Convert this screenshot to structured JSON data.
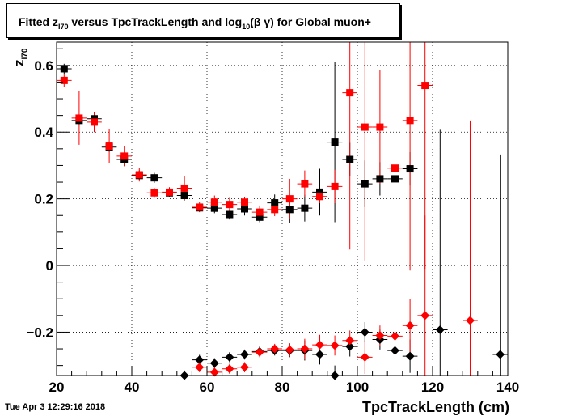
{
  "header": {
    "title_pre": "Fitted  z",
    "title_sub1": "I70",
    "title_mid": "  versus TpcTrackLength and log",
    "title_sub2": "10",
    "title_post": "(β γ) for Global muon+"
  },
  "axes": {
    "ylabel_main": "z",
    "ylabel_sub": "I70",
    "xlabel": "TpcTrackLength (cm)"
  },
  "footer": {
    "timestamp": "Tue Apr  3 12:29:16 2018"
  },
  "colors": {
    "series_black": "#000000",
    "series_red": "#ff0000",
    "grid": "#000000"
  },
  "chart_data": {
    "type": "scatter",
    "xlim": [
      20,
      140
    ],
    "ylim": [
      -0.33,
      0.67
    ],
    "x_ticks": [
      20,
      40,
      60,
      80,
      100,
      120,
      140
    ],
    "y_ticks": [
      -0.2,
      0,
      0.2,
      0.4,
      0.6
    ],
    "y_tick_labels": [
      "−0.2",
      "0",
      "0.2",
      "0.4",
      "0.6"
    ],
    "grid": true,
    "xerr": 2,
    "series": [
      {
        "marker": "square",
        "color": "black",
        "points": [
          {
            "x": 22,
            "y": 0.59,
            "yerr": 0.015
          },
          {
            "x": 26,
            "y": 0.435,
            "yerr": 0.015
          },
          {
            "x": 30,
            "y": 0.44,
            "yerr": 0.02
          },
          {
            "x": 34,
            "y": 0.355,
            "yerr": 0.015
          },
          {
            "x": 38,
            "y": 0.318,
            "yerr": 0.02
          },
          {
            "x": 42,
            "y": 0.27,
            "yerr": 0.015
          },
          {
            "x": 46,
            "y": 0.263,
            "yerr": 0.015
          },
          {
            "x": 50,
            "y": 0.218,
            "yerr": 0.01
          },
          {
            "x": 54,
            "y": 0.21,
            "yerr": 0.015
          },
          {
            "x": 58,
            "y": 0.173,
            "yerr": 0.01
          },
          {
            "x": 62,
            "y": 0.172,
            "yerr": 0.015
          },
          {
            "x": 66,
            "y": 0.153,
            "yerr": 0.015
          },
          {
            "x": 70,
            "y": 0.17,
            "yerr": 0.02
          },
          {
            "x": 74,
            "y": 0.145,
            "yerr": 0.015
          },
          {
            "x": 78,
            "y": 0.188,
            "yerr": 0.025
          },
          {
            "x": 82,
            "y": 0.168,
            "yerr": 0.04
          },
          {
            "x": 86,
            "y": 0.172,
            "yerr": 0.04
          },
          {
            "x": 90,
            "y": 0.22,
            "yerr": 0.07
          },
          {
            "x": 94,
            "y": 0.37,
            "yerr": 0.24
          },
          {
            "x": 98,
            "y": 0.318,
            "yerr": 0.05
          },
          {
            "x": 102,
            "y": 0.245,
            "yerr": 0.07
          },
          {
            "x": 106,
            "y": 0.26,
            "yerr": 0.05
          },
          {
            "x": 110,
            "y": 0.26,
            "yerr": 0.16
          },
          {
            "x": 114,
            "y": 0.29,
            "yerr": 0.05
          }
        ]
      },
      {
        "marker": "square",
        "color": "red",
        "points": [
          {
            "x": 22,
            "y": 0.555,
            "yerr": 0.02
          },
          {
            "x": 26,
            "y": 0.442,
            "yerr": 0.08
          },
          {
            "x": 30,
            "y": 0.43,
            "yerr": 0.03
          },
          {
            "x": 34,
            "y": 0.358,
            "yerr": 0.05
          },
          {
            "x": 38,
            "y": 0.328,
            "yerr": 0.03
          },
          {
            "x": 42,
            "y": 0.272,
            "yerr": 0.02
          },
          {
            "x": 46,
            "y": 0.218,
            "yerr": 0.015
          },
          {
            "x": 50,
            "y": 0.22,
            "yerr": 0.015
          },
          {
            "x": 54,
            "y": 0.232,
            "yerr": 0.035
          },
          {
            "x": 58,
            "y": 0.175,
            "yerr": 0.015
          },
          {
            "x": 62,
            "y": 0.19,
            "yerr": 0.02
          },
          {
            "x": 66,
            "y": 0.183,
            "yerr": 0.02
          },
          {
            "x": 70,
            "y": 0.19,
            "yerr": 0.015
          },
          {
            "x": 74,
            "y": 0.16,
            "yerr": 0.02
          },
          {
            "x": 78,
            "y": 0.168,
            "yerr": 0.02
          },
          {
            "x": 82,
            "y": 0.2,
            "yerr": 0.06
          },
          {
            "x": 86,
            "y": 0.245,
            "yerr": 0.04
          },
          {
            "x": 90,
            "y": 0.207,
            "yerr": 0.02
          },
          {
            "x": 94,
            "y": 0.237,
            "yerr": 0.05
          },
          {
            "x": 98,
            "y": 0.518,
            "yerr": 0.47
          },
          {
            "x": 102,
            "y": 0.415,
            "yerr": 0.4
          },
          {
            "x": 106,
            "y": 0.415,
            "yerr": 0.17
          },
          {
            "x": 110,
            "y": 0.292,
            "yerr": 0.06
          },
          {
            "x": 114,
            "y": 0.435,
            "yerr": 0.45
          },
          {
            "x": 118,
            "y": 0.54,
            "yerr": 0.55
          }
        ]
      },
      {
        "marker": "diamond",
        "color": "black",
        "points": [
          {
            "x": 54,
            "y": -0.33,
            "yerr": 0.015
          },
          {
            "x": 58,
            "y": -0.283,
            "yerr": 0.015
          },
          {
            "x": 62,
            "y": -0.293,
            "yerr": 0.015
          },
          {
            "x": 66,
            "y": -0.275,
            "yerr": 0.015
          },
          {
            "x": 70,
            "y": -0.267,
            "yerr": 0.015
          },
          {
            "x": 74,
            "y": -0.258,
            "yerr": 0.015
          },
          {
            "x": 78,
            "y": -0.255,
            "yerr": 0.015
          },
          {
            "x": 82,
            "y": -0.255,
            "yerr": 0.02
          },
          {
            "x": 86,
            "y": -0.255,
            "yerr": 0.03
          },
          {
            "x": 90,
            "y": -0.267,
            "yerr": 0.03
          },
          {
            "x": 94,
            "y": -0.33,
            "yerr": 0.03
          },
          {
            "x": 98,
            "y": -0.243,
            "yerr": 0.03
          },
          {
            "x": 102,
            "y": -0.2,
            "yerr": 0.03
          },
          {
            "x": 106,
            "y": -0.222,
            "yerr": 0.03
          },
          {
            "x": 110,
            "y": -0.255,
            "yerr": 0.05
          },
          {
            "x": 114,
            "y": -0.272,
            "yerr": 0.05
          },
          {
            "x": 122,
            "y": -0.193,
            "yerr": 0.6
          },
          {
            "x": 138,
            "y": -0.267,
            "yerr": 0.6
          }
        ]
      },
      {
        "marker": "diamond",
        "color": "red",
        "points": [
          {
            "x": 58,
            "y": -0.305,
            "yerr": 0.015
          },
          {
            "x": 62,
            "y": -0.32,
            "yerr": 0.015
          },
          {
            "x": 66,
            "y": -0.31,
            "yerr": 0.015
          },
          {
            "x": 70,
            "y": -0.305,
            "yerr": 0.015
          },
          {
            "x": 74,
            "y": -0.26,
            "yerr": 0.015
          },
          {
            "x": 78,
            "y": -0.25,
            "yerr": 0.015
          },
          {
            "x": 82,
            "y": -0.253,
            "yerr": 0.02
          },
          {
            "x": 86,
            "y": -0.25,
            "yerr": 0.03
          },
          {
            "x": 90,
            "y": -0.238,
            "yerr": 0.03
          },
          {
            "x": 94,
            "y": -0.24,
            "yerr": 0.03
          },
          {
            "x": 98,
            "y": -0.225,
            "yerr": 0.03
          },
          {
            "x": 102,
            "y": -0.275,
            "yerr": 0.05
          },
          {
            "x": 106,
            "y": -0.21,
            "yerr": 0.03
          },
          {
            "x": 110,
            "y": -0.212,
            "yerr": 0.04
          },
          {
            "x": 114,
            "y": -0.18,
            "yerr": 0.08
          },
          {
            "x": 118,
            "y": -0.15,
            "yerr": 0.3
          },
          {
            "x": 130,
            "y": -0.165,
            "yerr": 0.6
          }
        ]
      }
    ]
  }
}
